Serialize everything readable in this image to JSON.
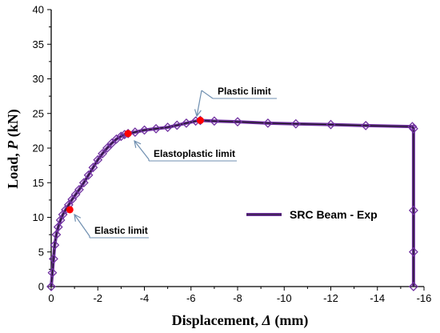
{
  "chart_data": {
    "type": "line",
    "xlabel_prefix": "Displacement, ",
    "xlabel_symbol": "Δ",
    "xlabel_unit": "(mm)",
    "ylabel_prefix": "Load, ",
    "ylabel_symbol": "P",
    "ylabel_unit": "(kN)",
    "xlim": [
      0,
      -16
    ],
    "ylim": [
      0,
      40
    ],
    "xticks": [
      0,
      -2,
      -4,
      -6,
      -8,
      -10,
      -12,
      -14,
      -16
    ],
    "xtick_labels": [
      "0",
      "-2",
      "-4",
      "-6",
      "-8",
      "-10",
      "-12",
      "-14",
      "-16"
    ],
    "yticks": [
      0,
      5,
      10,
      15,
      20,
      25,
      30,
      35,
      40
    ],
    "ytick_labels": [
      "0",
      "5",
      "10",
      "15",
      "20",
      "25",
      "30",
      "35",
      "40"
    ],
    "grid": false,
    "legend_placement": "middle-right",
    "series": [
      {
        "name": "SRC Beam - Exp",
        "color": "#7030a0",
        "line_color": "#1a1a1a",
        "marker": "diamond",
        "x": [
          0,
          -0.05,
          -0.1,
          -0.15,
          -0.22,
          -0.3,
          -0.4,
          -0.5,
          -0.62,
          -0.75,
          -0.9,
          -1.05,
          -1.2,
          -1.4,
          -1.6,
          -1.8,
          -2.0,
          -2.2,
          -2.4,
          -2.6,
          -2.8,
          -3.0,
          -3.15,
          -3.3,
          -3.6,
          -4.0,
          -4.5,
          -5.0,
          -5.4,
          -5.8,
          -6.2,
          -6.4,
          -7.0,
          -8.0,
          -9.3,
          -10.5,
          -12.0,
          -13.5,
          -15.5,
          -15.55,
          -15.55,
          -15.55,
          -15.55
        ],
        "y": [
          0,
          2.0,
          4.0,
          6.0,
          7.5,
          8.6,
          9.6,
          10.4,
          11.1,
          11.8,
          12.6,
          13.3,
          14.0,
          15.0,
          16.1,
          17.2,
          18.3,
          19.2,
          20.0,
          20.7,
          21.3,
          21.7,
          21.95,
          22.1,
          22.3,
          22.6,
          22.8,
          23.0,
          23.3,
          23.6,
          23.9,
          24.0,
          23.9,
          23.8,
          23.6,
          23.5,
          23.4,
          23.25,
          23.1,
          22.8,
          11.0,
          5.0,
          0
        ]
      }
    ],
    "key_points": [
      {
        "label": "Elastic limit",
        "x": -0.8,
        "y": 11.1,
        "color": "#ff0000"
      },
      {
        "label": "Elastoplastic limit",
        "x": -3.3,
        "y": 22.1,
        "color": "#ff0000"
      },
      {
        "label": "Plastic limit",
        "x": -6.4,
        "y": 24.0,
        "color": "#ff0000"
      }
    ],
    "annotations": [
      {
        "text": "Plastic limit"
      },
      {
        "text": "Elastoplastic limit"
      },
      {
        "text": "Elastic limit"
      }
    ]
  }
}
